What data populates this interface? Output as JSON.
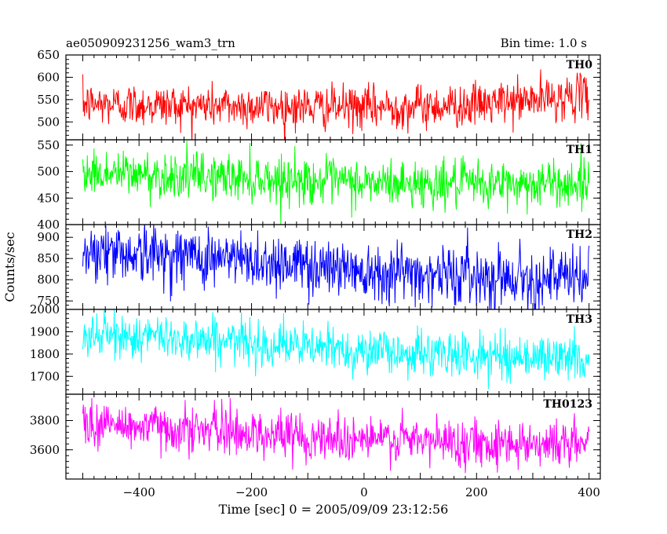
{
  "header": {
    "left": "ae050909231256_wam3_trn",
    "right": "Bin time: 1.0 s"
  },
  "chart_data": {
    "type": "line",
    "title": "ae050909231256_wam3_trn",
    "bin_time": "Bin time: 1.0 s",
    "xlabel": "Time [sec] 0 = 2005/09/09 23:12:56",
    "ylabel": "Counts/sec",
    "xlim": [
      -530,
      420
    ],
    "x_range": [
      -500,
      400
    ],
    "x_step": 1,
    "xticks": [
      -400,
      -200,
      0,
      200,
      400
    ],
    "xtick_labels": [
      "−400",
      "−200",
      "0",
      "200",
      "400"
    ],
    "grid": false,
    "series": [
      {
        "name": "TH0",
        "color": "#ff0000",
        "ylim": [
          460,
          650
        ],
        "yticks": [
          500,
          550,
          600,
          650
        ],
        "ytick_labels": [
          "500",
          "550",
          "600",
          "650"
        ],
        "trend": [
          [
            -500,
            540
          ],
          [
            -200,
            535
          ],
          [
            0,
            532
          ],
          [
            200,
            538
          ],
          [
            400,
            560
          ]
        ],
        "noise": 24
      },
      {
        "name": "TH1",
        "color": "#00ff00",
        "ylim": [
          400,
          560
        ],
        "yticks": [
          400,
          450,
          500,
          550
        ],
        "ytick_labels": [
          "400",
          "450",
          "500",
          "550"
        ],
        "trend": [
          [
            -500,
            498
          ],
          [
            -200,
            488
          ],
          [
            0,
            478
          ],
          [
            200,
            476
          ],
          [
            400,
            478
          ]
        ],
        "noise": 22
      },
      {
        "name": "TH2",
        "color": "#0000ff",
        "ylim": [
          730,
          930
        ],
        "yticks": [
          750,
          800,
          850,
          900
        ],
        "ytick_labels": [
          "750",
          "800",
          "850",
          "900"
        ],
        "trend": [
          [
            -500,
            870
          ],
          [
            -300,
            855
          ],
          [
            -100,
            835
          ],
          [
            100,
            815
          ],
          [
            400,
            800
          ]
        ],
        "noise": 35
      },
      {
        "name": "TH3",
        "color": "#00ffff",
        "ylim": [
          1620,
          2000
        ],
        "yticks": [
          1700,
          1800,
          1900,
          2000
        ],
        "ytick_labels": [
          "1700",
          "1800",
          "1900",
          "2000"
        ],
        "trend": [
          [
            -500,
            1885
          ],
          [
            -300,
            1870
          ],
          [
            -100,
            1830
          ],
          [
            100,
            1800
          ],
          [
            400,
            1780
          ]
        ],
        "noise": 50
      },
      {
        "name": "TH0123",
        "color": "#ff00ff",
        "ylim": [
          3400,
          3980
        ],
        "yticks": [
          3600,
          3800
        ],
        "ytick_labels": [
          "3600",
          "3800"
        ],
        "trend": [
          [
            -500,
            3780
          ],
          [
            -300,
            3740
          ],
          [
            -100,
            3690
          ],
          [
            100,
            3660
          ],
          [
            400,
            3640
          ]
        ],
        "noise": 80
      }
    ]
  }
}
